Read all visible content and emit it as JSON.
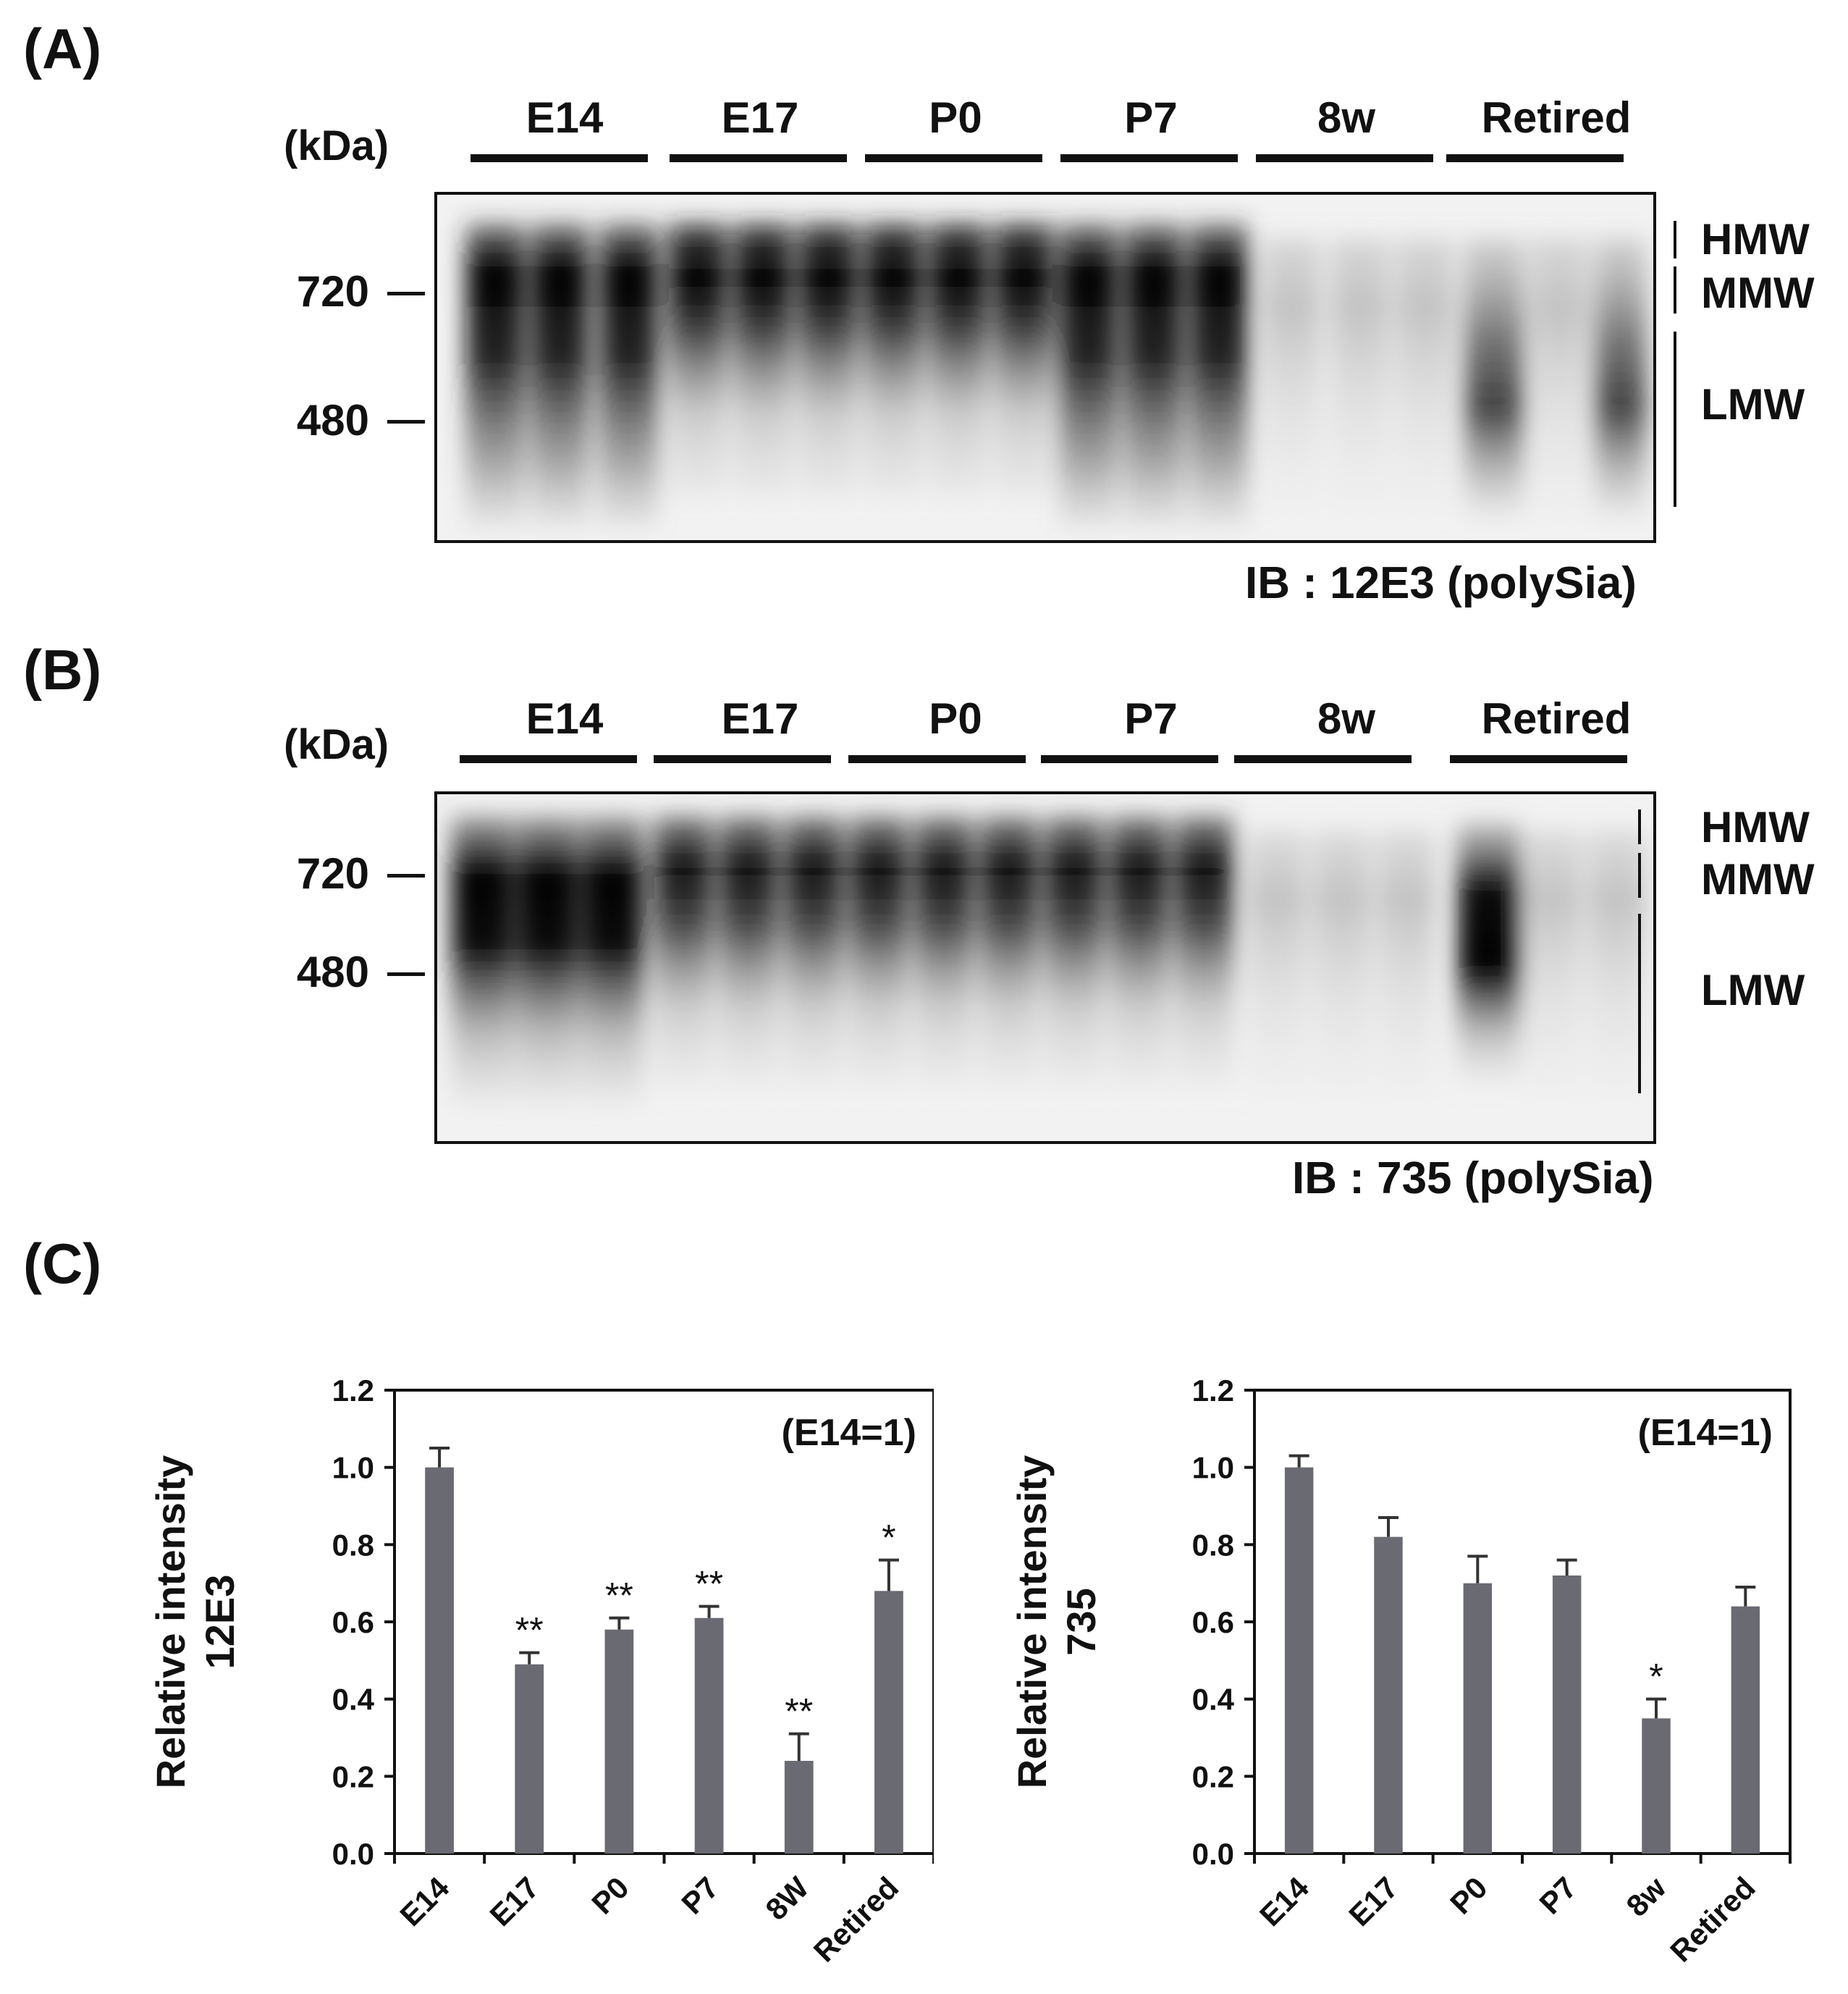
{
  "panels": {
    "a": {
      "label": "(A)",
      "kda": "(kDa)",
      "groups": [
        "E14",
        "E17",
        "P0",
        "P7",
        "8w",
        "Retired"
      ],
      "markers": [
        "720",
        "480"
      ],
      "mw_labels": [
        "HMW",
        "MMW",
        "LMW"
      ],
      "ib": "IB : 12E3 (polySia)"
    },
    "b": {
      "label": "(B)",
      "kda": "(kDa)",
      "groups": [
        "E14",
        "E17",
        "P0",
        "P7",
        "8w",
        "Retired"
      ],
      "markers": [
        "720",
        "480"
      ],
      "mw_labels": [
        "HMW",
        "MMW",
        "LMW"
      ],
      "ib": "IB : 735 (polySia)"
    },
    "c": {
      "label": "(C)"
    }
  },
  "chart_data": [
    {
      "type": "bar",
      "categories": [
        "E14",
        "E17",
        "P0",
        "P7",
        "8W",
        "Retired"
      ],
      "values": [
        1.0,
        0.49,
        0.58,
        0.61,
        0.24,
        0.68
      ],
      "errors": [
        0.05,
        0.03,
        0.03,
        0.03,
        0.07,
        0.08
      ],
      "significance": [
        "",
        "**",
        "**",
        "**",
        "**",
        "*"
      ],
      "ylabel": "Relative intensity",
      "ylabel2": "12E3",
      "annotation": "(E14=1)",
      "ylim": [
        0,
        1.2
      ],
      "yticks": [
        "0.0",
        "0.2",
        "0.4",
        "0.6",
        "0.8",
        "1.0",
        "1.2"
      ],
      "bar_color": "#6a6a72"
    },
    {
      "type": "bar",
      "categories": [
        "E14",
        "E17",
        "P0",
        "P7",
        "8w",
        "Retired"
      ],
      "values": [
        1.0,
        0.82,
        0.7,
        0.72,
        0.35,
        0.64
      ],
      "errors": [
        0.03,
        0.05,
        0.07,
        0.04,
        0.05,
        0.05
      ],
      "significance": [
        "",
        "",
        "",
        "",
        "*",
        ""
      ],
      "ylabel": "Relative intensity",
      "ylabel2": "735",
      "annotation": "(E14=1)",
      "ylim": [
        0,
        1.2
      ],
      "yticks": [
        "0.0",
        "0.2",
        "0.4",
        "0.6",
        "0.8",
        "1.0",
        "1.2"
      ],
      "bar_color": "#6a6a72"
    }
  ]
}
